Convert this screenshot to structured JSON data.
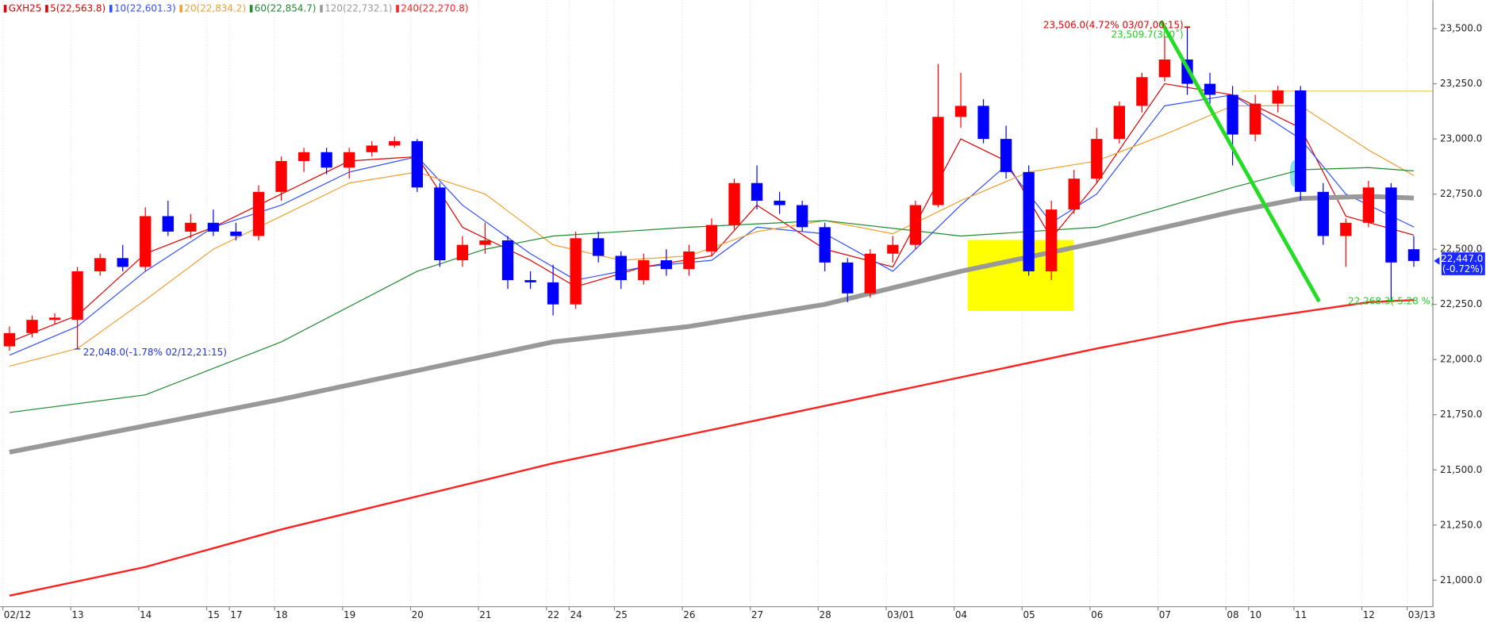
{
  "chart_data": {
    "type": "candlestick",
    "symbol": "GXH25",
    "categories": [
      "02/12",
      null,
      null,
      "13",
      null,
      null,
      "14",
      null,
      null,
      "15",
      "17",
      null,
      "18",
      null,
      null,
      "19",
      null,
      null,
      "20",
      null,
      null,
      "21",
      null,
      null,
      "22",
      "24",
      null,
      "25",
      null,
      null,
      "26",
      null,
      null,
      "27",
      null,
      null,
      "28",
      null,
      null,
      "03/01",
      null,
      null,
      "04",
      null,
      null,
      "05",
      null,
      null,
      "06",
      null,
      null,
      "07",
      null,
      null,
      "08",
      "10",
      null,
      "11",
      null,
      null,
      "12",
      null,
      "03/13"
    ],
    "candles": {
      "open": [
        22060,
        22120,
        22180,
        22180,
        22400,
        22460,
        22420,
        22650,
        22580,
        22620,
        22580,
        22560,
        22760,
        22900,
        22940,
        22870,
        22940,
        22970,
        22990,
        22780,
        22450,
        22520,
        22540,
        22360,
        22350,
        22250,
        22550,
        22470,
        22360,
        22450,
        22410,
        22490,
        22610,
        22800,
        22720,
        22700,
        22600,
        22440,
        22300,
        22480,
        22520,
        22700,
        23100,
        23150,
        23000,
        22850,
        22400,
        22680,
        22820,
        23000,
        23150,
        23280,
        23360,
        23250,
        23200,
        23020,
        23160,
        23220,
        22760,
        22560,
        22620,
        22780,
        22500
      ],
      "high": [
        22150,
        22200,
        22210,
        22420,
        22480,
        22520,
        22690,
        22720,
        22660,
        22680,
        22620,
        22790,
        22920,
        22960,
        22960,
        22960,
        22990,
        23010,
        23000,
        22800,
        22560,
        22620,
        22560,
        22400,
        22430,
        22580,
        22580,
        22490,
        22480,
        22500,
        22520,
        22640,
        22820,
        22880,
        22760,
        22720,
        22620,
        22460,
        22500,
        22560,
        22720,
        23340,
        23300,
        23180,
        23060,
        22880,
        22720,
        22860,
        23050,
        23170,
        23300,
        23470,
        23506,
        23300,
        23240,
        23200,
        23240,
        23240,
        22800,
        22640,
        22810,
        22800,
        22560
      ],
      "low": [
        22040,
        22100,
        22160,
        22048,
        22380,
        22400,
        22400,
        22560,
        22550,
        22560,
        22540,
        22540,
        22720,
        22850,
        22840,
        22820,
        22920,
        22960,
        22760,
        22420,
        22420,
        22480,
        22320,
        22320,
        22200,
        22230,
        22440,
        22320,
        22340,
        22380,
        22380,
        22470,
        22590,
        22680,
        22660,
        22580,
        22400,
        22260,
        22280,
        22440,
        22500,
        22690,
        23050,
        22980,
        22820,
        22380,
        22360,
        22660,
        22800,
        22980,
        23120,
        23260,
        23200,
        23160,
        22880,
        22990,
        23120,
        22720,
        22520,
        22420,
        22600,
        22268,
        22420
      ],
      "close": [
        22120,
        22180,
        22190,
        22400,
        22460,
        22420,
        22650,
        22580,
        22620,
        22580,
        22560,
        22760,
        22900,
        22940,
        22870,
        22940,
        22970,
        22990,
        22780,
        22450,
        22520,
        22540,
        22360,
        22350,
        22250,
        22550,
        22470,
        22360,
        22450,
        22410,
        22490,
        22610,
        22800,
        22720,
        22700,
        22600,
        22440,
        22300,
        22480,
        22520,
        22700,
        23100,
        23150,
        23000,
        22850,
        22400,
        22680,
        22820,
        23000,
        23150,
        23280,
        23360,
        23250,
        23200,
        23020,
        23160,
        23220,
        22760,
        22560,
        22620,
        22780,
        22440,
        22447
      ]
    },
    "up_color": "#ff0000",
    "down_color": "#0000ff",
    "series": [
      {
        "name": "5(22,563.8)",
        "color": "#e00000",
        "width": 1,
        "x": [
          0,
          3,
          6,
          9,
          12,
          15,
          18,
          20,
          23,
          25,
          28,
          31,
          33,
          36,
          39,
          42,
          44,
          46,
          48,
          51,
          54,
          57,
          59,
          62
        ],
        "values": [
          22080,
          22200,
          22480,
          22600,
          22750,
          22900,
          22920,
          22600,
          22450,
          22330,
          22420,
          22470,
          22700,
          22500,
          22420,
          23000,
          22900,
          22550,
          22800,
          23250,
          23200,
          23050,
          22650,
          22564
        ]
      },
      {
        "name": "10(22,601.3)",
        "color": "#3050ff",
        "width": 1,
        "x": [
          0,
          3,
          6,
          9,
          12,
          15,
          18,
          20,
          23,
          25,
          28,
          31,
          33,
          36,
          39,
          42,
          44,
          46,
          48,
          51,
          54,
          57,
          59,
          62
        ],
        "values": [
          22020,
          22150,
          22400,
          22600,
          22700,
          22850,
          22920,
          22700,
          22480,
          22360,
          22420,
          22450,
          22600,
          22570,
          22400,
          22700,
          22880,
          22620,
          22750,
          23150,
          23200,
          23000,
          22750,
          22601
        ]
      },
      {
        "name": "20(22,834.2)",
        "color": "#f0a030",
        "width": 1,
        "x": [
          0,
          3,
          6,
          9,
          12,
          15,
          18,
          21,
          24,
          27,
          30,
          33,
          36,
          39,
          42,
          45,
          48,
          51,
          54,
          57,
          60,
          62
        ],
        "values": [
          21970,
          22050,
          22270,
          22500,
          22650,
          22800,
          22850,
          22750,
          22520,
          22450,
          22470,
          22580,
          22630,
          22570,
          22720,
          22850,
          22900,
          23020,
          23150,
          23150,
          22950,
          22834
        ]
      },
      {
        "name": "60(22,854.7)",
        "color": "#208a30",
        "width": 1,
        "x": [
          0,
          6,
          12,
          18,
          21,
          24,
          30,
          36,
          42,
          48,
          54,
          57,
          60,
          62
        ],
        "values": [
          21760,
          21840,
          22080,
          22400,
          22500,
          22560,
          22600,
          22630,
          22560,
          22600,
          22780,
          22860,
          22870,
          22855
        ]
      },
      {
        "name": "120(22,732.1)",
        "color": "#999999",
        "width": 5,
        "x": [
          0,
          6,
          12,
          18,
          24,
          30,
          36,
          42,
          48,
          54,
          57,
          60,
          62
        ],
        "values": [
          21580,
          21700,
          21820,
          21950,
          22080,
          22150,
          22250,
          22400,
          22530,
          22670,
          22730,
          22740,
          22732
        ]
      },
      {
        "name": "240(22,270.8)",
        "color": "#ff2020",
        "width": 2,
        "x": [
          0,
          6,
          12,
          18,
          24,
          30,
          36,
          42,
          48,
          54,
          60,
          62
        ],
        "values": [
          20930,
          21060,
          21230,
          21380,
          21530,
          21660,
          21790,
          21920,
          22050,
          22170,
          22260,
          22270
        ]
      }
    ],
    "ylim": [
      20880,
      23629
    ],
    "yticks": [
      {
        "value": 21000,
        "label": "21,000.0"
      },
      {
        "value": 21250,
        "label": "21,250.0"
      },
      {
        "value": 21500,
        "label": "21,500.0"
      },
      {
        "value": 21750,
        "label": "21,750.0"
      },
      {
        "value": 22000,
        "label": "22,000.0"
      },
      {
        "value": 22250,
        "label": "22,250.0"
      },
      {
        "value": 22500,
        "label": "22,500.0"
      },
      {
        "value": 22750,
        "label": "22,750.0"
      },
      {
        "value": 23000,
        "label": "23,000.0"
      },
      {
        "value": 23250,
        "label": "23,250.0"
      },
      {
        "value": 23500,
        "label": "23,500.0"
      }
    ],
    "annotations": [
      {
        "index": 52,
        "value": 23506,
        "label": "23,506.0(4.72% 03/07,00:15)",
        "color": "#e00000"
      },
      {
        "index": 52,
        "value": 23509.7,
        "label": "23,509.7(300˚)",
        "color": "#20d020"
      },
      {
        "index": 3,
        "value": 22048,
        "label": "22,048.0(-1.78% 02/12,21:15)",
        "color": "#2030ff"
      },
      {
        "index": 61,
        "value": 22268.3,
        "label": "22,268.3(-5.28 %)",
        "color": "#20d020"
      }
    ],
    "current_price": {
      "value": 22447,
      "label": "22,447.0",
      "change": "(-0.72%)"
    }
  }
}
